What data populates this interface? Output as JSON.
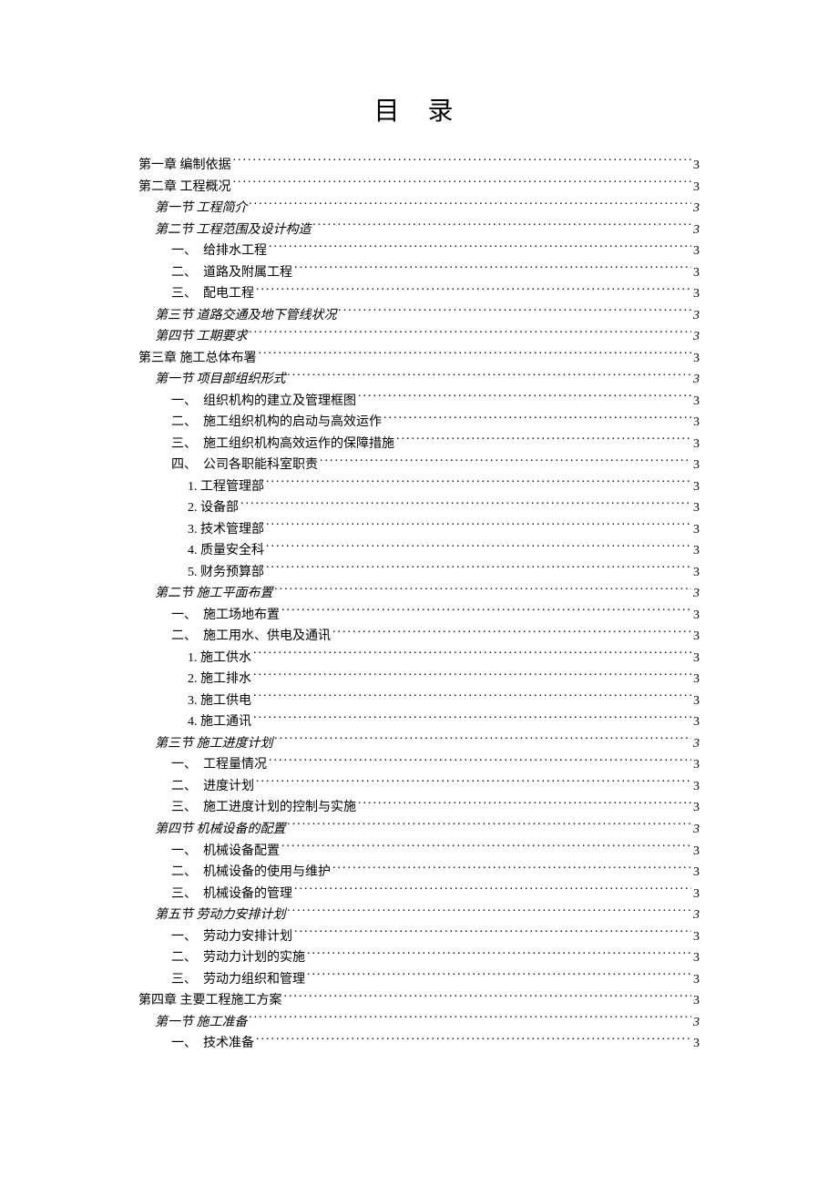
{
  "title": "目 录",
  "entries": [
    {
      "level": 1,
      "text": "第一章 编制依据",
      "page": "3",
      "italic": false
    },
    {
      "level": 1,
      "text": "第二章 工程概况",
      "page": "3",
      "italic": false
    },
    {
      "level": 2,
      "text": "第一节 工程简介",
      "page": "3",
      "italic": true
    },
    {
      "level": 2,
      "text": "第二节 工程范围及设计构造",
      "page": "3",
      "italic": true
    },
    {
      "level": 3,
      "text": "一、　给排水工程",
      "page": "3",
      "italic": false
    },
    {
      "level": 3,
      "text": "二、　道路及附属工程",
      "page": "3",
      "italic": false
    },
    {
      "level": 3,
      "text": "三、　配电工程",
      "page": "3",
      "italic": false
    },
    {
      "level": 2,
      "text": "第三节 道路交通及地下管线状况",
      "page": "3",
      "italic": true
    },
    {
      "level": 2,
      "text": "第四节 工期要求",
      "page": "3",
      "italic": true
    },
    {
      "level": 1,
      "text": "第三章 施工总体布署",
      "page": "3",
      "italic": false
    },
    {
      "level": 2,
      "text": "第一节 项目部组织形式",
      "page": "3",
      "italic": true
    },
    {
      "level": 3,
      "text": "一、　组织机构的建立及管理框图",
      "page": "3",
      "italic": false
    },
    {
      "level": 3,
      "text": "二、　施工组织机构的启动与高效运作",
      "page": "3",
      "italic": false
    },
    {
      "level": 3,
      "text": "三、　施工组织机构高效运作的保障措施",
      "page": "3",
      "italic": false
    },
    {
      "level": 3,
      "text": "四、　公司各职能科室职责",
      "page": "3",
      "italic": false
    },
    {
      "level": 4,
      "text": "1. 工程管理部",
      "page": "3",
      "italic": false
    },
    {
      "level": 4,
      "text": "2. 设备部",
      "page": "3",
      "italic": false
    },
    {
      "level": 4,
      "text": "3. 技术管理部",
      "page": "3",
      "italic": false
    },
    {
      "level": 4,
      "text": "4. 质量安全科",
      "page": "3",
      "italic": false
    },
    {
      "level": 4,
      "text": "5. 财务预算部",
      "page": "3",
      "italic": false
    },
    {
      "level": 2,
      "text": "第二节 施工平面布置",
      "page": "3",
      "italic": true
    },
    {
      "level": 3,
      "text": "一、　施工场地布置",
      "page": "3",
      "italic": false
    },
    {
      "level": 3,
      "text": "二、　施工用水、供电及通讯",
      "page": "3",
      "italic": false
    },
    {
      "level": 4,
      "text": "1. 施工供水",
      "page": "3",
      "italic": false
    },
    {
      "level": 4,
      "text": "2. 施工排水",
      "page": "3",
      "italic": false
    },
    {
      "level": 4,
      "text": "3. 施工供电",
      "page": "3",
      "italic": false
    },
    {
      "level": 4,
      "text": "4. 施工通讯",
      "page": "3",
      "italic": false
    },
    {
      "level": 2,
      "text": "第三节 施工进度计划",
      "page": "3",
      "italic": true
    },
    {
      "level": 3,
      "text": "一、　工程量情况",
      "page": "3",
      "italic": false
    },
    {
      "level": 3,
      "text": "二、　进度计划",
      "page": "3",
      "italic": false
    },
    {
      "level": 3,
      "text": "三、　施工进度计划的控制与实施",
      "page": "3",
      "italic": false
    },
    {
      "level": 2,
      "text": "第四节 机械设备的配置",
      "page": "3",
      "italic": true
    },
    {
      "level": 3,
      "text": "一、　机械设备配置",
      "page": "3",
      "italic": false
    },
    {
      "level": 3,
      "text": "二、　机械设备的使用与维护",
      "page": "3",
      "italic": false
    },
    {
      "level": 3,
      "text": "三、　机械设备的管理",
      "page": "3",
      "italic": false
    },
    {
      "level": 2,
      "text": "第五节 劳动力安排计划",
      "page": "3",
      "italic": true
    },
    {
      "level": 3,
      "text": "一、　劳动力安排计划",
      "page": "3",
      "italic": false
    },
    {
      "level": 3,
      "text": "二、　劳动力计划的实施",
      "page": "3",
      "italic": false
    },
    {
      "level": 3,
      "text": "三、　劳动力组织和管理",
      "page": "3",
      "italic": false
    },
    {
      "level": 1,
      "text": "第四章 主要工程施工方案",
      "page": "3",
      "italic": false
    },
    {
      "level": 2,
      "text": "第一节 施工准备",
      "page": "3",
      "italic": true
    },
    {
      "level": 3,
      "text": "一、　技术准备",
      "page": "3",
      "italic": false
    }
  ]
}
